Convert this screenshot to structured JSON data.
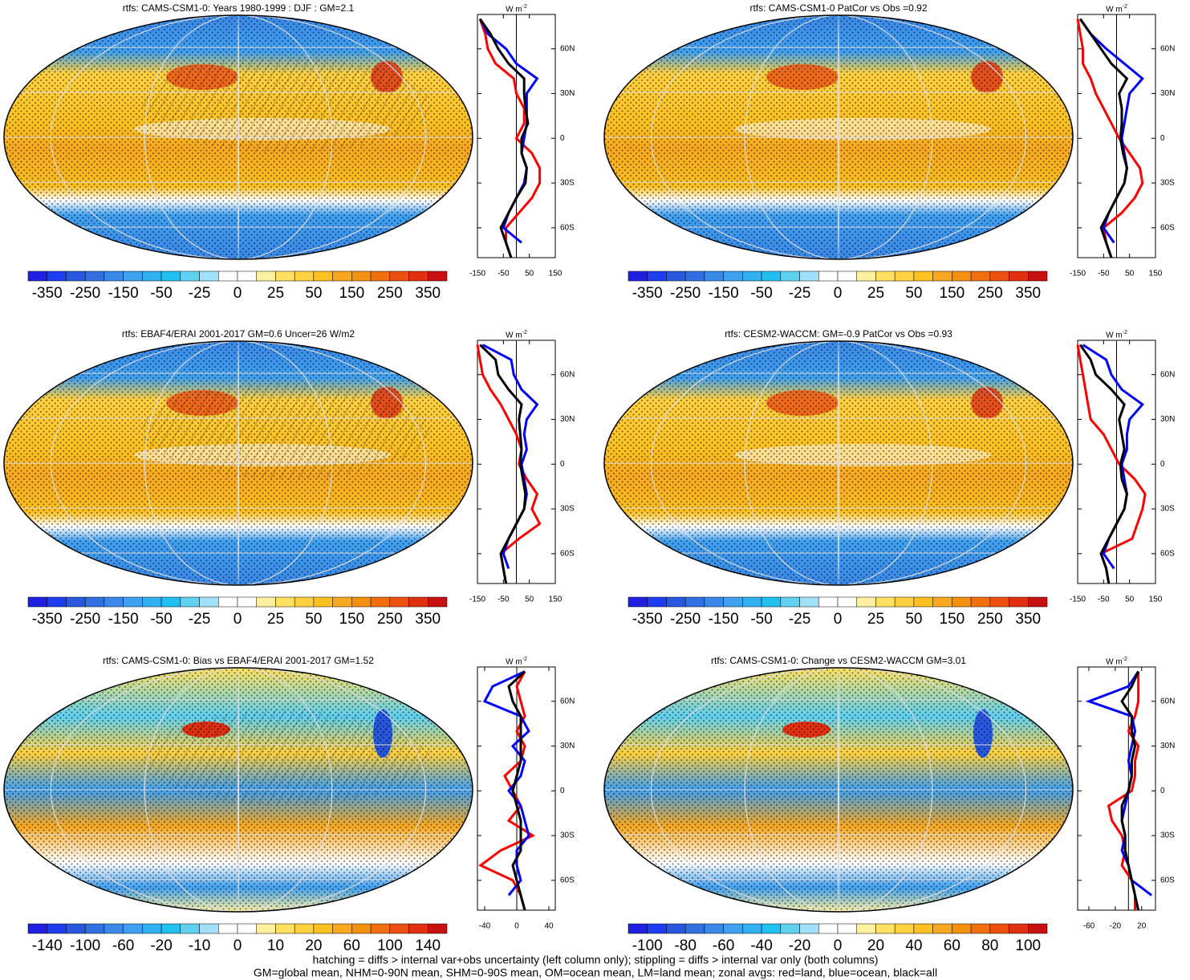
{
  "colorbar_colors": [
    "#2020e0",
    "#1e3cf0",
    "#2858e0",
    "#3070e0",
    "#3a88e8",
    "#40a0f0",
    "#30b0f0",
    "#20c0f0",
    "#60d0f0",
    "#a0e0f8",
    "#ffffff",
    "#ffffff",
    "#fff0a0",
    "#ffe060",
    "#ffd040",
    "#fcc020",
    "#f8a820",
    "#f49010",
    "#f07010",
    "#ec5010",
    "#e03010",
    "#c81010"
  ],
  "zonal_colors": [
    "#ff0000",
    "#0000ff",
    "#000000"
  ],
  "unit": "W m",
  "unit_sup": "-2",
  "lat": [
    -80,
    -70,
    -60,
    -50,
    -40,
    -30,
    -20,
    -10,
    0,
    10,
    20,
    30,
    40,
    50,
    60,
    70,
    80
  ],
  "panels": [
    {
      "title": "rtfs: CAMS-CSM1-0: Years 1980-1999 : DJF : GM=2.1",
      "style": "mean",
      "hatch": true,
      "colorbar": [
        "-350",
        "-250",
        "-150",
        "-50",
        "-25",
        "0",
        "25",
        "50",
        "150",
        "250",
        "350"
      ],
      "xlim": [
        -150,
        150
      ],
      "xticks": [
        -150,
        -50,
        50,
        150
      ],
      "ylim": [
        -80,
        83
      ],
      "yticks": [
        {
          "value": 60,
          "label": "60N"
        },
        {
          "value": 30,
          "label": "30N"
        },
        {
          "value": 0,
          "label": "0"
        },
        {
          "value": -30,
          "label": "30S"
        },
        {
          "value": -60,
          "label": "60S"
        }
      ],
      "series": [
        [
          -20,
          -40,
          -40,
          10,
          60,
          90,
          90,
          60,
          0,
          30,
          30,
          0,
          -10,
          -80,
          -110,
          -120,
          -140
        ],
        [
          null,
          20,
          -50,
          -30,
          0,
          30,
          40,
          20,
          30,
          40,
          40,
          40,
          80,
          0,
          -40,
          -110,
          -140
        ],
        [
          -20,
          -40,
          -60,
          -30,
          0,
          35,
          40,
          20,
          20,
          45,
          35,
          30,
          30,
          -30,
          -70,
          -100,
          -140
        ]
      ]
    },
    {
      "title": "rtfs: CAMS-CSM1-0 PatCor vs Obs =0.92",
      "style": "mean",
      "hatch": false,
      "colorbar": [
        "-350",
        "-250",
        "-150",
        "-50",
        "-25",
        "0",
        "25",
        "50",
        "150",
        "250",
        "350"
      ],
      "xlim": [
        -150,
        150
      ],
      "xticks": [
        -150,
        -50,
        50,
        150
      ],
      "ylim": [
        -80,
        83
      ],
      "yticks": [
        {
          "value": 60,
          "label": "60N"
        },
        {
          "value": 30,
          "label": "30N"
        },
        {
          "value": 0,
          "label": "0"
        },
        {
          "value": -30,
          "label": "30S"
        },
        {
          "value": -60,
          "label": "60S"
        }
      ],
      "series": [
        [
          -20,
          -40,
          -50,
          20,
          70,
          100,
          90,
          50,
          10,
          -20,
          -50,
          -80,
          -100,
          -130,
          -130,
          -140,
          -150
        ],
        [
          null,
          -10,
          -50,
          -30,
          0,
          30,
          40,
          30,
          20,
          30,
          40,
          50,
          100,
          30,
          -40,
          -100,
          -140
        ],
        [
          -20,
          -40,
          -60,
          -30,
          0,
          30,
          40,
          25,
          15,
          20,
          20,
          10,
          40,
          -20,
          -60,
          -100,
          -140
        ]
      ]
    },
    {
      "title": "rtfs: EBAF4/ERAI 2001-2017 GM=0.6 Uncer=26 W/m2",
      "style": "mean",
      "hatch": true,
      "colorbar": [
        "-350",
        "-250",
        "-150",
        "-50",
        "-25",
        "0",
        "25",
        "50",
        "150",
        "250",
        "350"
      ],
      "xlim": [
        -150,
        150
      ],
      "xticks": [
        -150,
        -50,
        50,
        150
      ],
      "ylim": [
        -80,
        83
      ],
      "yticks": [
        {
          "value": 60,
          "label": "60N"
        },
        {
          "value": 30,
          "label": "30N"
        },
        {
          "value": 0,
          "label": "0"
        },
        {
          "value": -30,
          "label": "30S"
        },
        {
          "value": -60,
          "label": "60S"
        }
      ],
      "series": [
        [
          -40,
          -50,
          -60,
          10,
          90,
          60,
          80,
          40,
          10,
          20,
          0,
          -30,
          -60,
          -100,
          -130,
          -140,
          -150
        ],
        [
          null,
          -30,
          -50,
          -30,
          0,
          30,
          40,
          30,
          20,
          40,
          30,
          40,
          80,
          20,
          -10,
          -20,
          -130
        ],
        [
          -40,
          -50,
          -60,
          -30,
          0,
          30,
          35,
          25,
          15,
          20,
          15,
          10,
          20,
          -30,
          -70,
          -80,
          -140
        ]
      ]
    },
    {
      "title": "rtfs: CESM2-WACCM: GM=-0.9 PatCor vs Obs =0.93",
      "style": "mean",
      "hatch": false,
      "colorbar": [
        "-350",
        "-250",
        "-150",
        "-50",
        "-25",
        "0",
        "25",
        "50",
        "150",
        "250",
        "350"
      ],
      "xlim": [
        -150,
        150
      ],
      "xticks": [
        -150,
        -50,
        50,
        150
      ],
      "ylim": [
        -80,
        83
      ],
      "yticks": [
        {
          "value": 60,
          "label": "60N"
        },
        {
          "value": 30,
          "label": "30N"
        },
        {
          "value": 0,
          "label": "0"
        },
        {
          "value": -30,
          "label": "30S"
        },
        {
          "value": -60,
          "label": "60S"
        }
      ],
      "series": [
        [
          -30,
          -40,
          -60,
          60,
          80,
          100,
          110,
          70,
          10,
          -20,
          -50,
          -100,
          -110,
          -120,
          -130,
          -140,
          -150
        ],
        [
          null,
          -10,
          -50,
          -30,
          0,
          30,
          40,
          30,
          20,
          40,
          40,
          50,
          100,
          20,
          -20,
          -40,
          -130
        ],
        [
          -30,
          -40,
          -60,
          -30,
          0,
          30,
          40,
          20,
          15,
          30,
          20,
          10,
          30,
          -20,
          -80,
          -100,
          -140
        ]
      ]
    },
    {
      "title": "rtfs: CAMS-CSM1-0: Bias vs EBAF4/ERAI 2001-2017 GM=1.52",
      "style": "diff",
      "hatch": true,
      "colorbar": [
        "-140",
        "-100",
        "-60",
        "-20",
        "-10",
        "0",
        "10",
        "20",
        "60",
        "100",
        "140"
      ],
      "xlim": [
        -49,
        48
      ],
      "xticks": [
        -40,
        0,
        40
      ],
      "ylim": [
        -80,
        83
      ],
      "yticks": [
        {
          "value": 60,
          "label": "60N"
        },
        {
          "value": 30,
          "label": "30N"
        },
        {
          "value": 0,
          "label": "0"
        },
        {
          "value": -30,
          "label": "30S"
        },
        {
          "value": -60,
          "label": "60S"
        }
      ],
      "series": [
        [
          10,
          5,
          -5,
          -45,
          -20,
          20,
          -10,
          5,
          -5,
          -15,
          5,
          10,
          0,
          10,
          5,
          0,
          10
        ],
        [
          null,
          -10,
          5,
          0,
          0,
          15,
          10,
          5,
          -10,
          5,
          10,
          -5,
          15,
          5,
          -40,
          -30,
          10
        ],
        [
          10,
          5,
          0,
          -5,
          5,
          5,
          5,
          0,
          -5,
          0,
          5,
          5,
          5,
          5,
          -5,
          -10,
          10
        ]
      ]
    },
    {
      "title": "rtfs: CAMS-CSM1-0: Change vs CESM2-WACCM GM=3.01",
      "style": "diff",
      "hatch": false,
      "colorbar": [
        "-100",
        "-80",
        "-60",
        "-40",
        "-20",
        "0",
        "20",
        "40",
        "60",
        "80",
        "100"
      ],
      "xlim": [
        -77,
        41
      ],
      "xticks": [
        -60,
        -20,
        20
      ],
      "ylim": [
        -80,
        83
      ],
      "yticks": [
        {
          "value": 60,
          "label": "60N"
        },
        {
          "value": 30,
          "label": "30N"
        },
        {
          "value": 0,
          "label": "0"
        },
        {
          "value": -30,
          "label": "30S"
        },
        {
          "value": -60,
          "label": "60S"
        }
      ],
      "series": [
        [
          10,
          10,
          5,
          -10,
          -5,
          -10,
          -25,
          -30,
          5,
          10,
          10,
          15,
          0,
          10,
          15,
          15,
          15
        ],
        [
          null,
          35,
          5,
          0,
          -10,
          -5,
          -10,
          -5,
          0,
          5,
          0,
          5,
          10,
          5,
          -60,
          0,
          15
        ],
        [
          15,
          10,
          5,
          0,
          -5,
          -5,
          -10,
          -10,
          0,
          5,
          5,
          10,
          5,
          5,
          -10,
          5,
          15
        ]
      ]
    }
  ],
  "footer": [
    "hatching = diffs > internal var+obs uncertainty (left column only); stippling = diffs > internal var only (both columns)",
    "GM=global mean, NHM=0-90N mean, SHM=0-90S mean, OM=ocean mean, LM=land mean; zonal avgs: red=land, blue=ocean, black=all"
  ]
}
